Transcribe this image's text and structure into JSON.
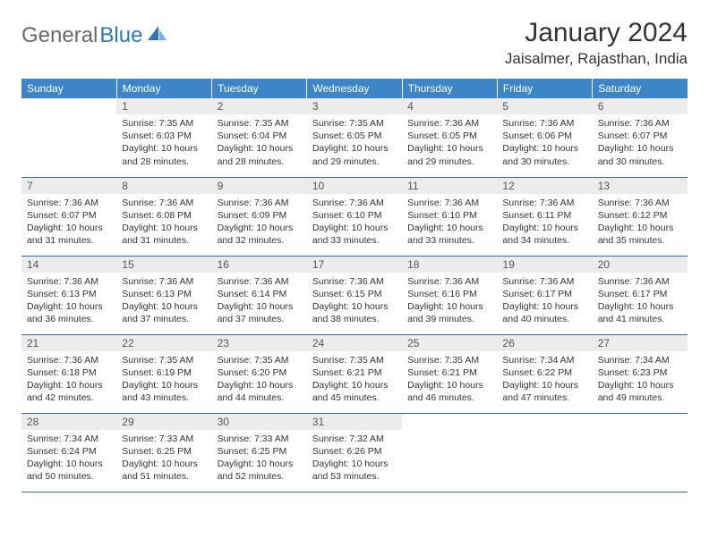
{
  "logo": {
    "part1": "General",
    "part2": "Blue"
  },
  "title": "January 2024",
  "location": "Jaisalmer, Rajasthan, India",
  "theme": {
    "header_bg": "#3d85c6",
    "header_text": "#ffffff",
    "daynum_bg": "#ececec",
    "daynum_text": "#555555",
    "body_text": "#333333",
    "rule_color": "#2f6aa8",
    "logo_gray": "#6a6a6a",
    "logo_blue": "#2f77bb",
    "page_bg": "#ffffff",
    "th_fontsize": 12,
    "daynum_fontsize": 12,
    "body_fontsize": 10.5,
    "title_fontsize": 30,
    "location_fontsize": 17
  },
  "weekdays": [
    "Sunday",
    "Monday",
    "Tuesday",
    "Wednesday",
    "Thursday",
    "Friday",
    "Saturday"
  ],
  "weeks": [
    [
      {
        "n": "",
        "sr": "",
        "ss": "",
        "dl": ""
      },
      {
        "n": "1",
        "sr": "Sunrise: 7:35 AM",
        "ss": "Sunset: 6:03 PM",
        "dl": "Daylight: 10 hours and 28 minutes."
      },
      {
        "n": "2",
        "sr": "Sunrise: 7:35 AM",
        "ss": "Sunset: 6:04 PM",
        "dl": "Daylight: 10 hours and 28 minutes."
      },
      {
        "n": "3",
        "sr": "Sunrise: 7:35 AM",
        "ss": "Sunset: 6:05 PM",
        "dl": "Daylight: 10 hours and 29 minutes."
      },
      {
        "n": "4",
        "sr": "Sunrise: 7:36 AM",
        "ss": "Sunset: 6:05 PM",
        "dl": "Daylight: 10 hours and 29 minutes."
      },
      {
        "n": "5",
        "sr": "Sunrise: 7:36 AM",
        "ss": "Sunset: 6:06 PM",
        "dl": "Daylight: 10 hours and 30 minutes."
      },
      {
        "n": "6",
        "sr": "Sunrise: 7:36 AM",
        "ss": "Sunset: 6:07 PM",
        "dl": "Daylight: 10 hours and 30 minutes."
      }
    ],
    [
      {
        "n": "7",
        "sr": "Sunrise: 7:36 AM",
        "ss": "Sunset: 6:07 PM",
        "dl": "Daylight: 10 hours and 31 minutes."
      },
      {
        "n": "8",
        "sr": "Sunrise: 7:36 AM",
        "ss": "Sunset: 6:08 PM",
        "dl": "Daylight: 10 hours and 31 minutes."
      },
      {
        "n": "9",
        "sr": "Sunrise: 7:36 AM",
        "ss": "Sunset: 6:09 PM",
        "dl": "Daylight: 10 hours and 32 minutes."
      },
      {
        "n": "10",
        "sr": "Sunrise: 7:36 AM",
        "ss": "Sunset: 6:10 PM",
        "dl": "Daylight: 10 hours and 33 minutes."
      },
      {
        "n": "11",
        "sr": "Sunrise: 7:36 AM",
        "ss": "Sunset: 6:10 PM",
        "dl": "Daylight: 10 hours and 33 minutes."
      },
      {
        "n": "12",
        "sr": "Sunrise: 7:36 AM",
        "ss": "Sunset: 6:11 PM",
        "dl": "Daylight: 10 hours and 34 minutes."
      },
      {
        "n": "13",
        "sr": "Sunrise: 7:36 AM",
        "ss": "Sunset: 6:12 PM",
        "dl": "Daylight: 10 hours and 35 minutes."
      }
    ],
    [
      {
        "n": "14",
        "sr": "Sunrise: 7:36 AM",
        "ss": "Sunset: 6:13 PM",
        "dl": "Daylight: 10 hours and 36 minutes."
      },
      {
        "n": "15",
        "sr": "Sunrise: 7:36 AM",
        "ss": "Sunset: 6:13 PM",
        "dl": "Daylight: 10 hours and 37 minutes."
      },
      {
        "n": "16",
        "sr": "Sunrise: 7:36 AM",
        "ss": "Sunset: 6:14 PM",
        "dl": "Daylight: 10 hours and 37 minutes."
      },
      {
        "n": "17",
        "sr": "Sunrise: 7:36 AM",
        "ss": "Sunset: 6:15 PM",
        "dl": "Daylight: 10 hours and 38 minutes."
      },
      {
        "n": "18",
        "sr": "Sunrise: 7:36 AM",
        "ss": "Sunset: 6:16 PM",
        "dl": "Daylight: 10 hours and 39 minutes."
      },
      {
        "n": "19",
        "sr": "Sunrise: 7:36 AM",
        "ss": "Sunset: 6:17 PM",
        "dl": "Daylight: 10 hours and 40 minutes."
      },
      {
        "n": "20",
        "sr": "Sunrise: 7:36 AM",
        "ss": "Sunset: 6:17 PM",
        "dl": "Daylight: 10 hours and 41 minutes."
      }
    ],
    [
      {
        "n": "21",
        "sr": "Sunrise: 7:36 AM",
        "ss": "Sunset: 6:18 PM",
        "dl": "Daylight: 10 hours and 42 minutes."
      },
      {
        "n": "22",
        "sr": "Sunrise: 7:35 AM",
        "ss": "Sunset: 6:19 PM",
        "dl": "Daylight: 10 hours and 43 minutes."
      },
      {
        "n": "23",
        "sr": "Sunrise: 7:35 AM",
        "ss": "Sunset: 6:20 PM",
        "dl": "Daylight: 10 hours and 44 minutes."
      },
      {
        "n": "24",
        "sr": "Sunrise: 7:35 AM",
        "ss": "Sunset: 6:21 PM",
        "dl": "Daylight: 10 hours and 45 minutes."
      },
      {
        "n": "25",
        "sr": "Sunrise: 7:35 AM",
        "ss": "Sunset: 6:21 PM",
        "dl": "Daylight: 10 hours and 46 minutes."
      },
      {
        "n": "26",
        "sr": "Sunrise: 7:34 AM",
        "ss": "Sunset: 6:22 PM",
        "dl": "Daylight: 10 hours and 47 minutes."
      },
      {
        "n": "27",
        "sr": "Sunrise: 7:34 AM",
        "ss": "Sunset: 6:23 PM",
        "dl": "Daylight: 10 hours and 49 minutes."
      }
    ],
    [
      {
        "n": "28",
        "sr": "Sunrise: 7:34 AM",
        "ss": "Sunset: 6:24 PM",
        "dl": "Daylight: 10 hours and 50 minutes."
      },
      {
        "n": "29",
        "sr": "Sunrise: 7:33 AM",
        "ss": "Sunset: 6:25 PM",
        "dl": "Daylight: 10 hours and 51 minutes."
      },
      {
        "n": "30",
        "sr": "Sunrise: 7:33 AM",
        "ss": "Sunset: 6:25 PM",
        "dl": "Daylight: 10 hours and 52 minutes."
      },
      {
        "n": "31",
        "sr": "Sunrise: 7:32 AM",
        "ss": "Sunset: 6:26 PM",
        "dl": "Daylight: 10 hours and 53 minutes."
      },
      {
        "n": "",
        "sr": "",
        "ss": "",
        "dl": ""
      },
      {
        "n": "",
        "sr": "",
        "ss": "",
        "dl": ""
      },
      {
        "n": "",
        "sr": "",
        "ss": "",
        "dl": ""
      }
    ]
  ]
}
